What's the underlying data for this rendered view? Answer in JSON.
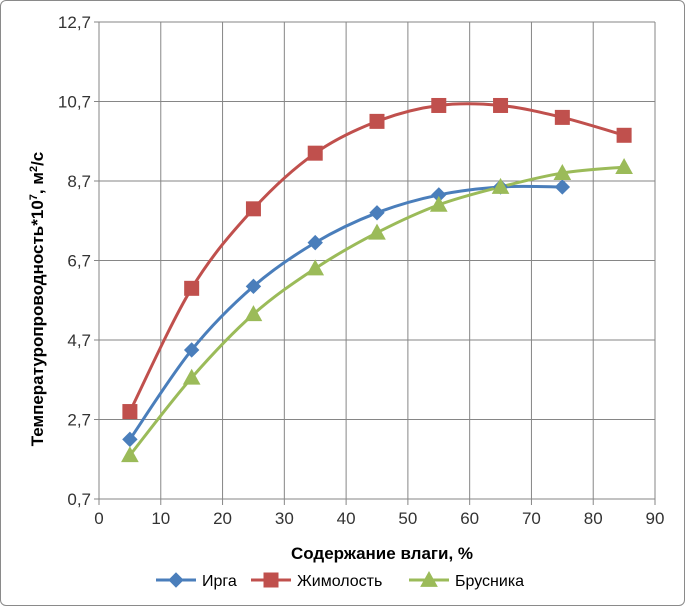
{
  "chart_data": {
    "type": "line",
    "title": "",
    "xlabel": "Содержание влаги, %",
    "ylabel": "Температуропроводность*10",
    "ylabel_sup": "7",
    "ylabel_suffix": ", м",
    "ylabel_sup2": "2",
    "ylabel_end": "/с",
    "xlim": [
      0,
      90
    ],
    "ylim": [
      0.7,
      12.7
    ],
    "x_ticks": [
      "0",
      "10",
      "20",
      "30",
      "40",
      "50",
      "60",
      "70",
      "80",
      "90"
    ],
    "y_ticks": [
      "0,7",
      "2,7",
      "4,7",
      "6,7",
      "8,7",
      "10,7",
      "12,7"
    ],
    "grid": true,
    "legend_position": "bottom",
    "series": [
      {
        "name": "Ирга",
        "color": "#4a7ebb",
        "marker": "diamond",
        "x": [
          5,
          15,
          25,
          35,
          45,
          55,
          65,
          75
        ],
        "y": [
          2.2,
          4.45,
          6.05,
          7.15,
          7.9,
          8.35,
          8.55,
          8.55
        ]
      },
      {
        "name": "Жимолость",
        "color": "#c0504d",
        "marker": "square",
        "x": [
          5,
          15,
          25,
          35,
          45,
          55,
          65,
          75,
          85
        ],
        "y": [
          2.9,
          6.0,
          8.0,
          9.4,
          10.2,
          10.6,
          10.6,
          10.3,
          9.85
        ]
      },
      {
        "name": "Брусника",
        "color": "#9bbb59",
        "marker": "triangle",
        "x": [
          5,
          15,
          25,
          35,
          45,
          55,
          65,
          75,
          85
        ],
        "y": [
          1.8,
          3.75,
          5.35,
          6.5,
          7.4,
          8.1,
          8.55,
          8.9,
          9.05
        ]
      }
    ]
  }
}
